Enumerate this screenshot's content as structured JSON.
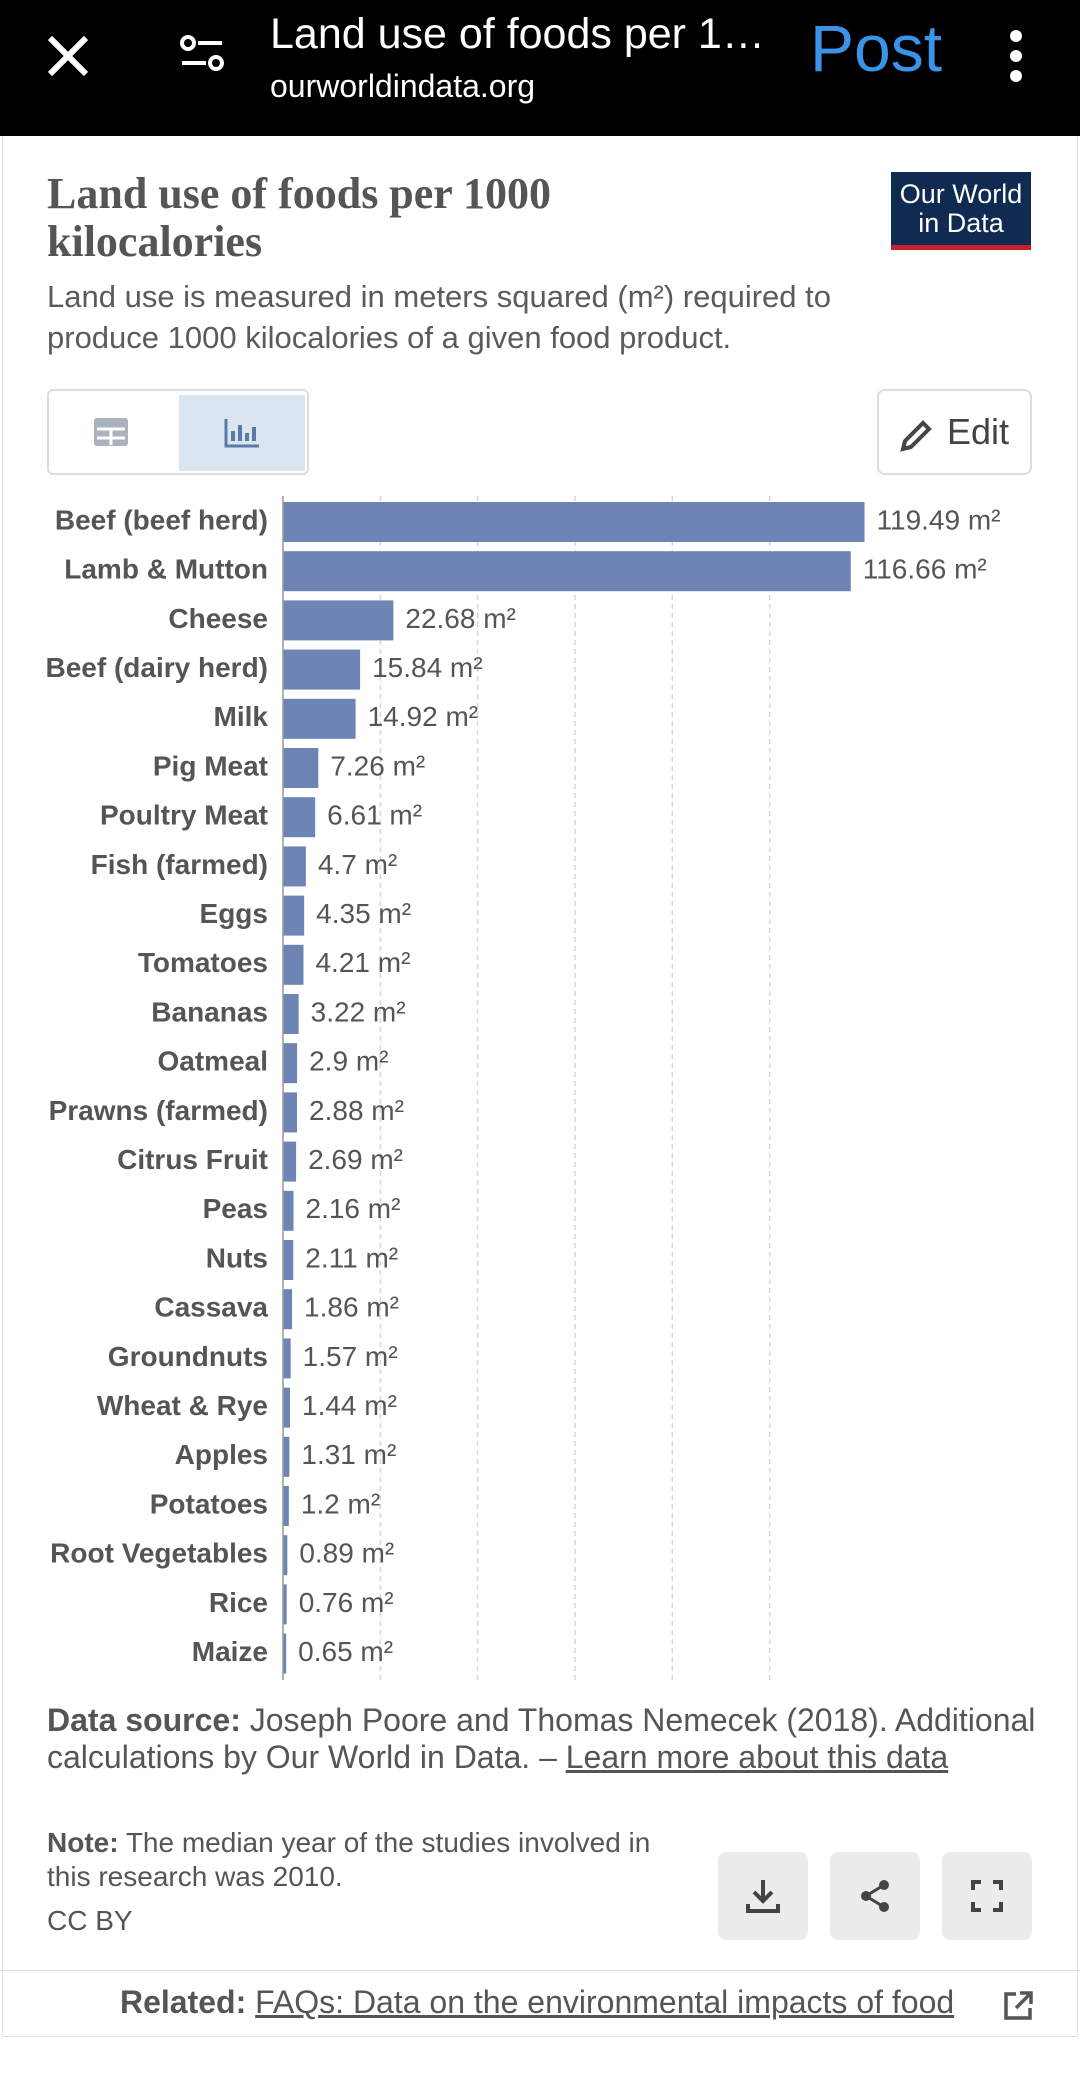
{
  "browser": {
    "title": "Land use of foods per 1…",
    "url": "ourworldindata.org",
    "action": "Post"
  },
  "logo": [
    "Our World",
    "in Data"
  ],
  "chart_data": {
    "type": "bar",
    "orientation": "horizontal",
    "title": "Land use of foods per 1000 kilocalories",
    "subtitle": "Land use is measured in meters squared (m²) required to produce 1000 kilocalories of a given food product.",
    "categories": [
      "Beef (beef herd)",
      "Lamb & Mutton",
      "Cheese",
      "Beef (dairy herd)",
      "Milk",
      "Pig Meat",
      "Poultry Meat",
      "Fish (farmed)",
      "Eggs",
      "Tomatoes",
      "Bananas",
      "Oatmeal",
      "Prawns (farmed)",
      "Citrus Fruit",
      "Peas",
      "Nuts",
      "Cassava",
      "Groundnuts",
      "Wheat & Rye",
      "Apples",
      "Potatoes",
      "Root Vegetables",
      "Rice",
      "Maize"
    ],
    "values": [
      119.49,
      116.66,
      22.68,
      15.84,
      14.92,
      7.26,
      6.61,
      4.7,
      4.35,
      4.21,
      3.22,
      2.9,
      2.88,
      2.69,
      2.16,
      2.11,
      1.86,
      1.57,
      1.44,
      1.31,
      1.2,
      0.89,
      0.76,
      0.65
    ],
    "value_labels": [
      "119.49 m²",
      "116.66 m²",
      "22.68 m²",
      "15.84 m²",
      "14.92 m²",
      "7.26 m²",
      "6.61 m²",
      "4.7 m²",
      "4.35 m²",
      "4.21 m²",
      "3.22 m²",
      "2.9 m²",
      "2.88 m²",
      "2.69 m²",
      "2.16 m²",
      "2.11 m²",
      "1.86 m²",
      "1.57 m²",
      "1.44 m²",
      "1.31 m²",
      "1.2 m²",
      "0.89 m²",
      "0.76 m²",
      "0.65 m²"
    ],
    "color": "#6d84b4",
    "xlim": [
      0,
      120
    ],
    "gridlines": [
      20,
      40,
      60,
      80,
      100
    ]
  },
  "controls": {
    "edit": "Edit"
  },
  "footer": {
    "source_label": "Data source:",
    "source_text": "Joseph Poore and Thomas Nemecek (2018). Additional calculations by Our World in Data. –",
    "source_link": "Learn more about this data",
    "note_label": "Note:",
    "note_text": "The median year of the studies involved in this research was 2010.",
    "license": "CC BY",
    "related_label": "Related:",
    "related_link": "FAQs: Data on the environmental impacts of food"
  }
}
